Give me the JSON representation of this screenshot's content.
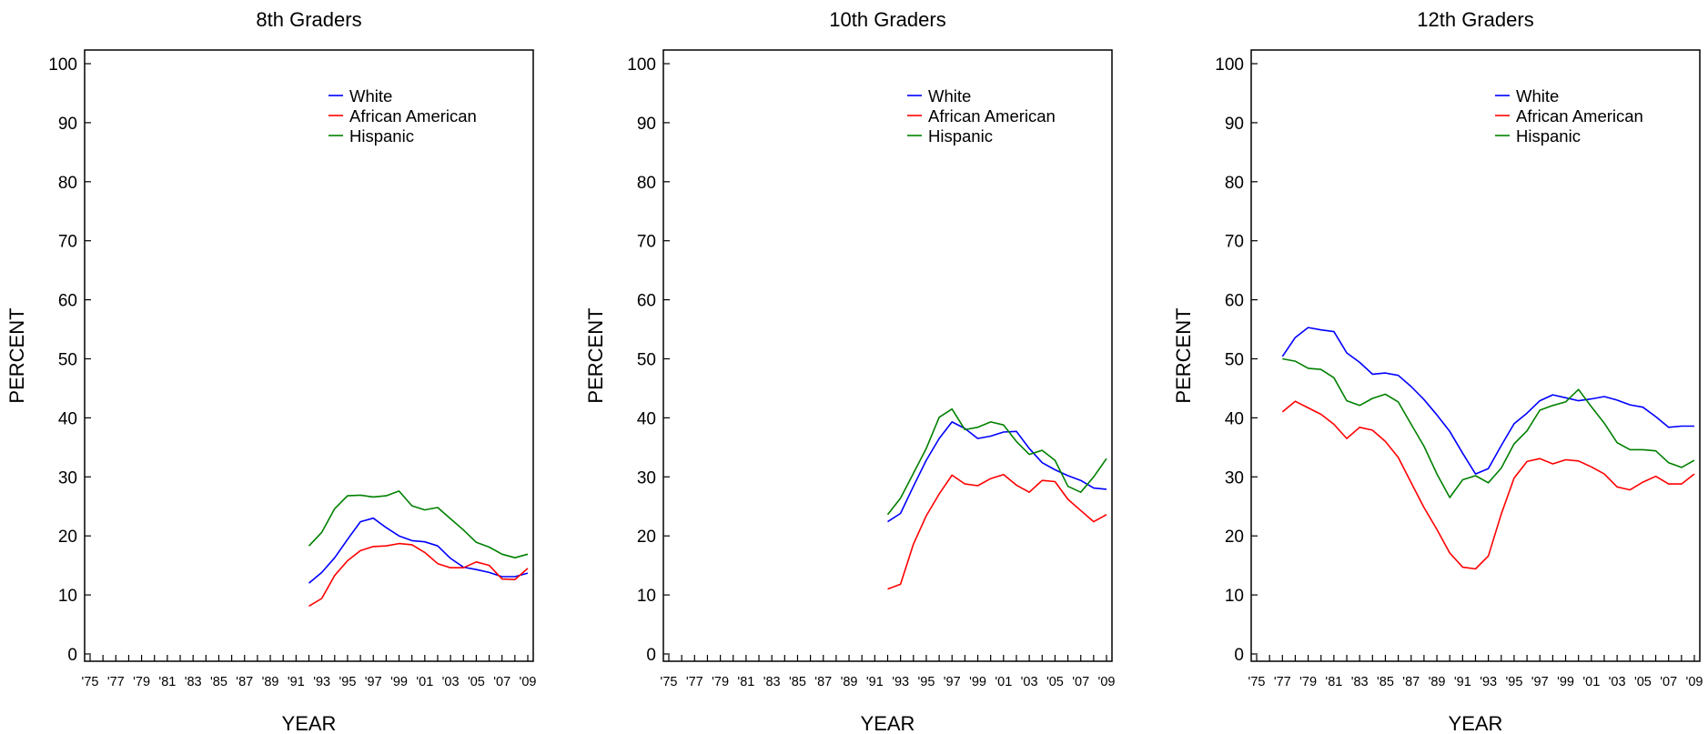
{
  "colors": {
    "White": "#0000ff",
    "African American": "#ff0000",
    "Hispanic": "#008000"
  },
  "chart_data": [
    {
      "type": "line",
      "title": "8th Graders",
      "xlabel": "YEAR",
      "ylabel": "PERCENT",
      "ylim": [
        0,
        100
      ],
      "yticks": [
        "0",
        "10",
        "20",
        "30",
        "40",
        "50",
        "60",
        "70",
        "80",
        "90",
        "100"
      ],
      "xticks": [
        "'75",
        "'77",
        "'79",
        "'81",
        "'83",
        "'85",
        "'87",
        "'89",
        "'91",
        "'93",
        "'95",
        "'97",
        "'99",
        "'01",
        "'03",
        "'05",
        "'07",
        "'09"
      ],
      "xlim": [
        1975,
        2009
      ],
      "legend_position": "top-right",
      "series": [
        {
          "name": "White",
          "x": [
            1992,
            1993,
            1994,
            1995,
            1996,
            1997,
            1998,
            1999,
            2000,
            2001,
            2002,
            2003,
            2004,
            2005,
            2006,
            2007,
            2008,
            2009
          ],
          "values": [
            12.0,
            13.8,
            16.3,
            19.4,
            22.4,
            23.0,
            21.4,
            20.0,
            19.2,
            19.0,
            18.3,
            16.2,
            14.7,
            14.3,
            13.8,
            13.1,
            13.1,
            13.7
          ]
        },
        {
          "name": "African American",
          "x": [
            1992,
            1993,
            1994,
            1995,
            1996,
            1997,
            1998,
            1999,
            2000,
            2001,
            2002,
            2003,
            2004,
            2005,
            2006,
            2007,
            2008,
            2009
          ],
          "values": [
            8.1,
            9.4,
            13.3,
            15.8,
            17.5,
            18.2,
            18.3,
            18.7,
            18.5,
            17.2,
            15.3,
            14.6,
            14.6,
            15.6,
            15.0,
            12.7,
            12.6,
            14.5
          ]
        },
        {
          "name": "Hispanic",
          "x": [
            1992,
            1993,
            1994,
            1995,
            1996,
            1997,
            1998,
            1999,
            2000,
            2001,
            2002,
            2003,
            2004,
            2005,
            2006,
            2007,
            2008,
            2009
          ],
          "values": [
            18.3,
            20.6,
            24.6,
            26.8,
            26.9,
            26.6,
            26.8,
            27.6,
            25.1,
            24.4,
            24.8,
            22.9,
            21.0,
            18.9,
            18.1,
            16.9,
            16.3,
            16.9
          ]
        }
      ]
    },
    {
      "type": "line",
      "title": "10th Graders",
      "xlabel": "YEAR",
      "ylabel": "PERCENT",
      "ylim": [
        0,
        100
      ],
      "yticks": [
        "0",
        "10",
        "20",
        "30",
        "40",
        "50",
        "60",
        "70",
        "80",
        "90",
        "100"
      ],
      "xticks": [
        "'75",
        "'77",
        "'79",
        "'81",
        "'83",
        "'85",
        "'87",
        "'89",
        "'91",
        "'93",
        "'95",
        "'97",
        "'99",
        "'01",
        "'03",
        "'05",
        "'07",
        "'09"
      ],
      "xlim": [
        1975,
        2009
      ],
      "legend_position": "top-right",
      "series": [
        {
          "name": "White",
          "x": [
            1992,
            1993,
            1994,
            1995,
            1996,
            1997,
            1998,
            1999,
            2000,
            2001,
            2002,
            2003,
            2004,
            2005,
            2006,
            2007,
            2008,
            2009
          ],
          "values": [
            22.4,
            23.8,
            28.4,
            32.8,
            36.5,
            39.3,
            38.2,
            36.5,
            36.9,
            37.6,
            37.7,
            34.8,
            32.4,
            31.2,
            30.2,
            29.4,
            28.1,
            27.9
          ]
        },
        {
          "name": "African American",
          "x": [
            1992,
            1993,
            1994,
            1995,
            1996,
            1997,
            1998,
            1999,
            2000,
            2001,
            2002,
            2003,
            2004,
            2005,
            2006,
            2007,
            2008,
            2009
          ],
          "values": [
            11.0,
            11.8,
            18.6,
            23.4,
            27.1,
            30.3,
            28.8,
            28.5,
            29.7,
            30.4,
            28.6,
            27.4,
            29.4,
            29.2,
            26.2,
            24.3,
            22.4,
            23.6
          ]
        },
        {
          "name": "Hispanic",
          "x": [
            1992,
            1993,
            1994,
            1995,
            1996,
            1997,
            1998,
            1999,
            2000,
            2001,
            2002,
            2003,
            2004,
            2005,
            2006,
            2007,
            2008,
            2009
          ],
          "values": [
            23.6,
            26.4,
            30.6,
            34.8,
            40.1,
            41.5,
            38.0,
            38.4,
            39.3,
            38.8,
            36.0,
            33.8,
            34.5,
            32.8,
            28.4,
            27.4,
            30.0,
            33.1
          ]
        }
      ]
    },
    {
      "type": "line",
      "title": "12th Graders",
      "xlabel": "YEAR",
      "ylabel": "PERCENT",
      "ylim": [
        0,
        100
      ],
      "yticks": [
        "0",
        "10",
        "20",
        "30",
        "40",
        "50",
        "60",
        "70",
        "80",
        "90",
        "100"
      ],
      "xticks": [
        "'75",
        "'77",
        "'79",
        "'81",
        "'83",
        "'85",
        "'87",
        "'89",
        "'91",
        "'93",
        "'95",
        "'97",
        "'99",
        "'01",
        "'03",
        "'05",
        "'07",
        "'09"
      ],
      "xlim": [
        1975,
        2009
      ],
      "legend_position": "top-right",
      "series": [
        {
          "name": "White",
          "x": [
            1977,
            1978,
            1979,
            1980,
            1981,
            1982,
            1983,
            1984,
            1985,
            1986,
            1987,
            1988,
            1989,
            1990,
            1991,
            1992,
            1993,
            1994,
            1995,
            1996,
            1997,
            1998,
            1999,
            2000,
            2001,
            2002,
            2003,
            2004,
            2005,
            2006,
            2007,
            2008,
            2009
          ],
          "values": [
            50.4,
            53.6,
            55.3,
            54.9,
            54.6,
            51.0,
            49.4,
            47.4,
            47.6,
            47.2,
            45.3,
            43.1,
            40.5,
            37.7,
            34.0,
            30.5,
            31.4,
            35.3,
            39.0,
            40.8,
            42.9,
            43.9,
            43.4,
            42.9,
            43.2,
            43.6,
            43.0,
            42.2,
            41.8,
            40.2,
            38.4,
            38.6,
            38.6
          ]
        },
        {
          "name": "African American",
          "x": [
            1977,
            1978,
            1979,
            1980,
            1981,
            1982,
            1983,
            1984,
            1985,
            1986,
            1987,
            1988,
            1989,
            1990,
            1991,
            1992,
            1993,
            1994,
            1995,
            1996,
            1997,
            1998,
            1999,
            2000,
            2001,
            2002,
            2003,
            2004,
            2005,
            2006,
            2007,
            2008,
            2009
          ],
          "values": [
            41.0,
            42.8,
            41.7,
            40.6,
            38.9,
            36.5,
            38.4,
            37.9,
            36.0,
            33.3,
            29.0,
            24.8,
            21.1,
            17.1,
            14.7,
            14.4,
            16.6,
            23.7,
            29.8,
            32.6,
            33.1,
            32.2,
            32.9,
            32.7,
            31.7,
            30.5,
            28.3,
            27.8,
            29.1,
            30.1,
            28.8,
            28.8,
            30.5
          ]
        },
        {
          "name": "Hispanic",
          "x": [
            1977,
            1978,
            1979,
            1980,
            1981,
            1982,
            1983,
            1984,
            1985,
            1986,
            1987,
            1988,
            1989,
            1990,
            1991,
            1992,
            1993,
            1994,
            1995,
            1996,
            1997,
            1998,
            1999,
            2000,
            2001,
            2002,
            2003,
            2004,
            2005,
            2006,
            2007,
            2008,
            2009
          ],
          "values": [
            50.0,
            49.6,
            48.4,
            48.2,
            46.8,
            42.9,
            42.1,
            43.3,
            44.0,
            42.7,
            38.9,
            35.2,
            30.5,
            26.5,
            29.5,
            30.2,
            29.0,
            31.5,
            35.6,
            37.8,
            41.3,
            42.1,
            42.7,
            44.8,
            41.9,
            39.1,
            35.8,
            34.6,
            34.6,
            34.4,
            32.4,
            31.6,
            32.8
          ]
        }
      ]
    }
  ]
}
